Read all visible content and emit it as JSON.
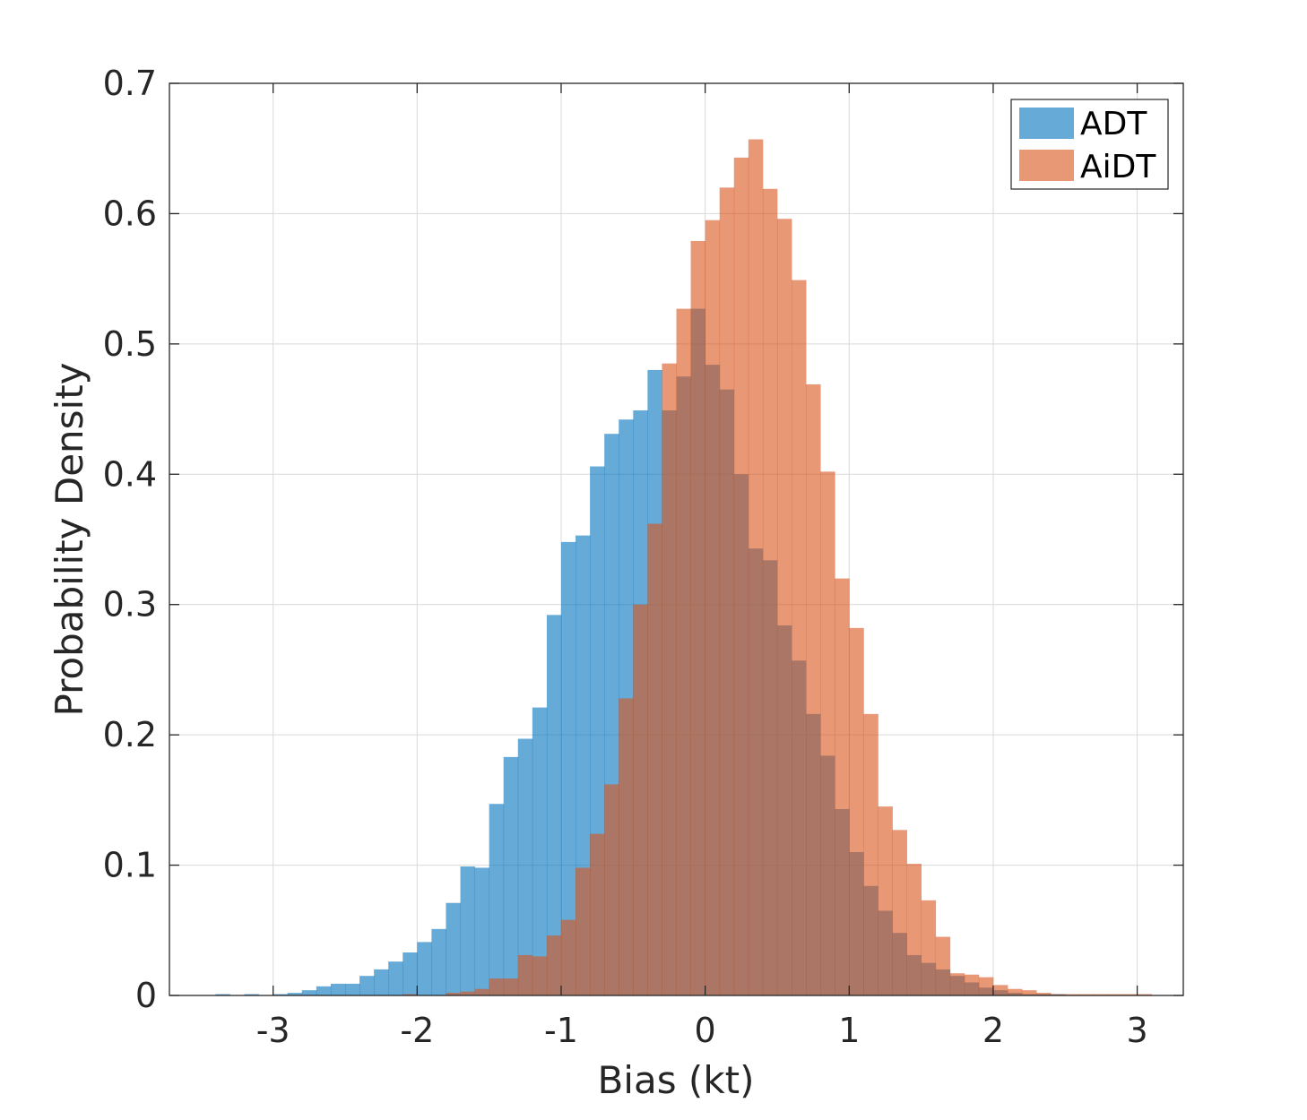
{
  "chart_data": {
    "type": "bar",
    "subtype": "overlapping-histogram",
    "title": "",
    "xlabel": "Bias (kt)",
    "ylabel": "Probability Density",
    "xlim": [
      -3.72,
      3.32
    ],
    "ylim": [
      0,
      0.7
    ],
    "xticks": [
      -3,
      -2,
      -1,
      0,
      1,
      2,
      3
    ],
    "xtick_labels": [
      "-3",
      "-2",
      "-1",
      "0",
      "1",
      "2",
      "3"
    ],
    "yticks": [
      0,
      0.1,
      0.2,
      0.3,
      0.4,
      0.5,
      0.6,
      0.7
    ],
    "ytick_labels": [
      "0",
      "0.1",
      "0.2",
      "0.3",
      "0.4",
      "0.5",
      "0.6",
      "0.7"
    ],
    "grid": true,
    "legend_position": "top-right",
    "bin_width": 0.1,
    "series": [
      {
        "name": "ADT",
        "color": "#0072bd",
        "bin_start": -3.4,
        "values": [
          0.001,
          0,
          0.001,
          0,
          0.001,
          0.002,
          0.004,
          0.007,
          0.009,
          0.009,
          0.015,
          0.02,
          0.026,
          0.033,
          0.041,
          0.051,
          0.071,
          0.099,
          0.098,
          0.147,
          0.183,
          0.197,
          0.221,
          0.292,
          0.348,
          0.353,
          0.406,
          0.431,
          0.442,
          0.449,
          0.48,
          0.449,
          0.475,
          0.527,
          0.484,
          0.465,
          0.4,
          0.343,
          0.334,
          0.284,
          0.257,
          0.216,
          0.184,
          0.143,
          0.11,
          0.084,
          0.065,
          0.048,
          0.031,
          0.025,
          0.02,
          0.015,
          0.01,
          0.006,
          0.004,
          0.002,
          0.001,
          0.001,
          0.001
        ]
      },
      {
        "name": "AiDT",
        "color": "#d95319",
        "bin_start": -2.6,
        "values": [
          0,
          0,
          0,
          0,
          0,
          0.001,
          0,
          0,
          0.002,
          0.003,
          0.005,
          0.013,
          0.013,
          0.031,
          0.03,
          0.046,
          0.058,
          0.098,
          0.124,
          0.162,
          0.228,
          0.3,
          0.362,
          0.485,
          0.527,
          0.579,
          0.595,
          0.62,
          0.643,
          0.657,
          0.619,
          0.596,
          0.549,
          0.469,
          0.402,
          0.32,
          0.282,
          0.216,
          0.145,
          0.127,
          0.101,
          0.073,
          0.045,
          0.017,
          0.016,
          0.014,
          0.008,
          0.005,
          0.004,
          0.002,
          0.001,
          0.001,
          0.001,
          0.001,
          0.001,
          0.001,
          0.001
        ]
      }
    ]
  },
  "legend": {
    "items": [
      {
        "label": "ADT",
        "color": "#0072bd"
      },
      {
        "label": "AiDT",
        "color": "#d95319"
      }
    ]
  }
}
